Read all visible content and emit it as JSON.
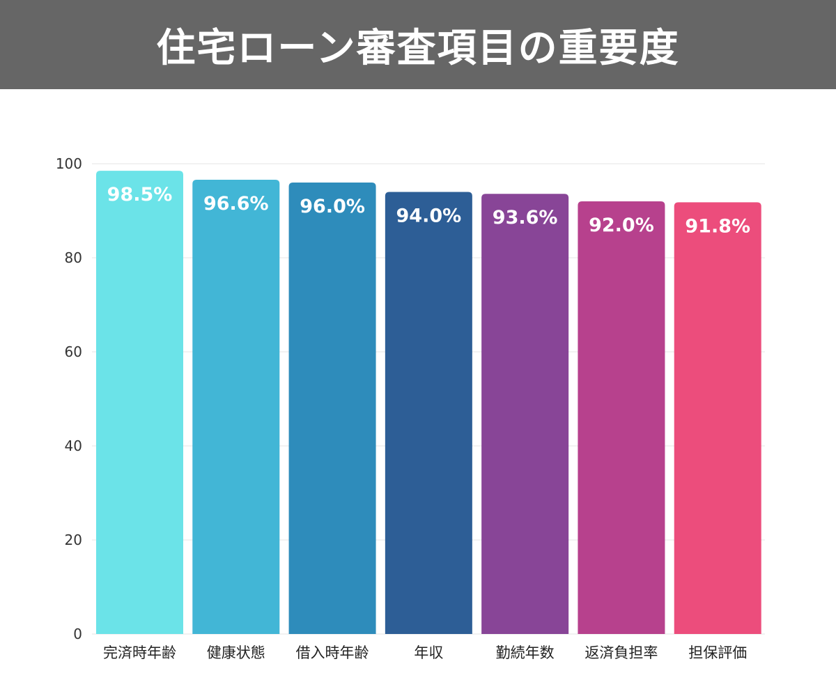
{
  "header": {
    "title": "住宅ローン審査項目の重要度"
  },
  "chart_data": {
    "type": "bar",
    "title": "住宅ローン審査項目の重要度",
    "xlabel": "",
    "ylabel": "",
    "ylim": [
      0,
      100
    ],
    "yticks": [
      0,
      20,
      40,
      60,
      80,
      100
    ],
    "grid": true,
    "categories": [
      "完済時年齢",
      "健康状態",
      "借入時年齢",
      "年収",
      "勤続年数",
      "返済負担率",
      "担保評価"
    ],
    "values": [
      98.5,
      96.6,
      96.0,
      94.0,
      93.6,
      92.0,
      91.8
    ],
    "data_labels": [
      "98.5%",
      "96.6%",
      "96.0%",
      "94.0%",
      "93.6%",
      "92.0%",
      "91.8%"
    ],
    "colors": [
      "#6be3e8",
      "#42b6d6",
      "#2e8cbb",
      "#2d5e96",
      "#884597",
      "#b7418d",
      "#ec4d7c"
    ]
  }
}
